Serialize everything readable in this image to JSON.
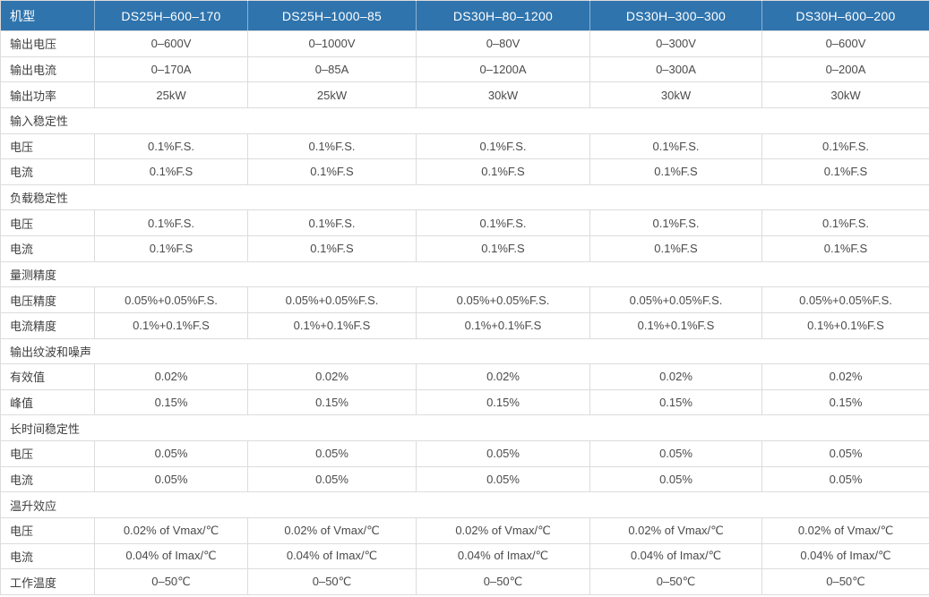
{
  "table": {
    "header": [
      "机型",
      "DS25H–600–170",
      "DS25H–1000–85",
      "DS30H–80–1200",
      "DS30H–300–300",
      "DS30H–600–200"
    ],
    "rows": [
      {
        "type": "data",
        "label": "输出电压",
        "values": [
          "0–600V",
          "0–1000V",
          "0–80V",
          "0–300V",
          "0–600V"
        ]
      },
      {
        "type": "data",
        "label": "输出电流",
        "values": [
          "0–170A",
          "0–85A",
          "0–1200A",
          "0–300A",
          "0–200A"
        ]
      },
      {
        "type": "data",
        "label": "输出功率",
        "values": [
          "25kW",
          "25kW",
          "30kW",
          "30kW",
          "30kW"
        ]
      },
      {
        "type": "section",
        "label": "输入稳定性"
      },
      {
        "type": "data",
        "label": "电压",
        "values": [
          "0.1%F.S.",
          "0.1%F.S.",
          "0.1%F.S.",
          "0.1%F.S.",
          "0.1%F.S."
        ]
      },
      {
        "type": "data",
        "label": "电流",
        "values": [
          "0.1%F.S",
          "0.1%F.S",
          "0.1%F.S",
          "0.1%F.S",
          "0.1%F.S"
        ]
      },
      {
        "type": "section",
        "label": "负载稳定性"
      },
      {
        "type": "data",
        "label": "电压",
        "values": [
          "0.1%F.S.",
          "0.1%F.S.",
          "0.1%F.S.",
          "0.1%F.S.",
          "0.1%F.S."
        ]
      },
      {
        "type": "data",
        "label": "电流",
        "values": [
          "0.1%F.S",
          "0.1%F.S",
          "0.1%F.S",
          "0.1%F.S",
          "0.1%F.S"
        ]
      },
      {
        "type": "section",
        "label": "量测精度"
      },
      {
        "type": "data",
        "label": "电压精度",
        "values": [
          "0.05%+0.05%F.S.",
          "0.05%+0.05%F.S.",
          "0.05%+0.05%F.S.",
          "0.05%+0.05%F.S.",
          "0.05%+0.05%F.S."
        ]
      },
      {
        "type": "data",
        "label": "电流精度",
        "values": [
          "0.1%+0.1%F.S",
          "0.1%+0.1%F.S",
          "0.1%+0.1%F.S",
          "0.1%+0.1%F.S",
          "0.1%+0.1%F.S"
        ]
      },
      {
        "type": "section",
        "label": "输出纹波和噪声"
      },
      {
        "type": "data",
        "label": "有效值",
        "values": [
          "0.02%",
          "0.02%",
          "0.02%",
          "0.02%",
          "0.02%"
        ]
      },
      {
        "type": "data",
        "label": "峰值",
        "values": [
          "0.15%",
          "0.15%",
          "0.15%",
          "0.15%",
          "0.15%"
        ]
      },
      {
        "type": "section",
        "label": "长时间稳定性"
      },
      {
        "type": "data",
        "label": "电压",
        "values": [
          "0.05%",
          "0.05%",
          "0.05%",
          "0.05%",
          "0.05%"
        ]
      },
      {
        "type": "data",
        "label": "电流",
        "values": [
          "0.05%",
          "0.05%",
          "0.05%",
          "0.05%",
          "0.05%"
        ]
      },
      {
        "type": "section",
        "label": "温升效应"
      },
      {
        "type": "data",
        "label": "电压",
        "values": [
          "0.02% of Vmax/℃",
          "0.02% of Vmax/℃",
          "0.02% of Vmax/℃",
          "0.02% of Vmax/℃",
          "0.02% of Vmax/℃"
        ]
      },
      {
        "type": "data",
        "label": "电流",
        "values": [
          "0.04% of Imax/℃",
          "0.04% of Imax/℃",
          "0.04% of Imax/℃",
          "0.04% of Imax/℃",
          "0.04% of Imax/℃"
        ]
      },
      {
        "type": "data",
        "label": "工作温度",
        "values": [
          "0–50℃",
          "0–50℃",
          "0–50℃",
          "0–50℃",
          "0–50℃"
        ]
      }
    ],
    "colors": {
      "header_bg": "#2f74ad",
      "header_text": "#ffffff",
      "border": "#dcdcdc",
      "label_text": "#404040",
      "value_text": "#4a4a4a"
    }
  }
}
